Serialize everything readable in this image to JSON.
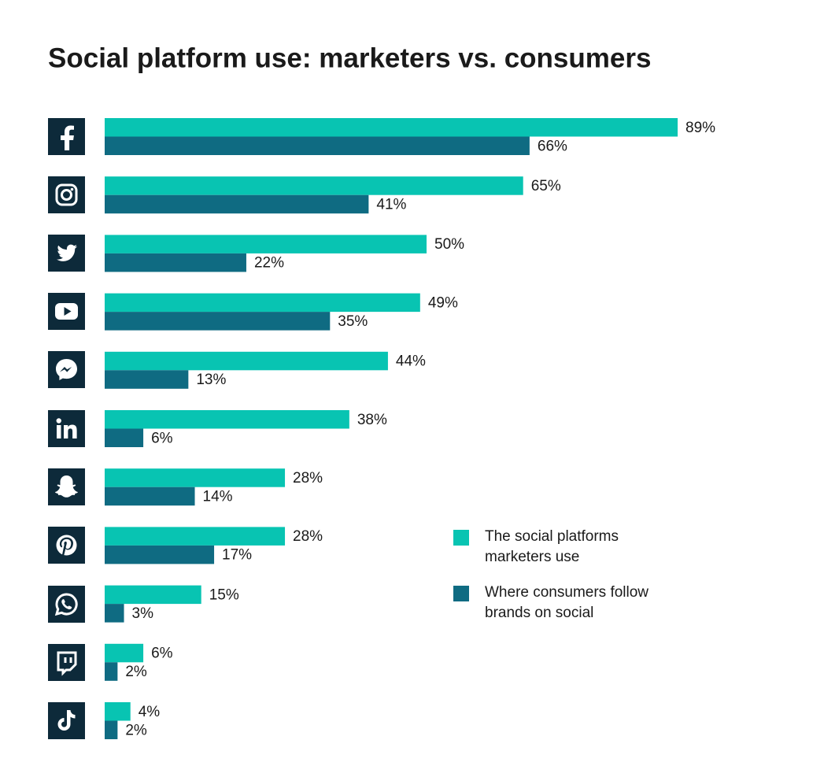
{
  "chart_data": {
    "type": "bar",
    "orientation": "horizontal",
    "title": "Social platform use: marketers vs. consumers",
    "categories": [
      null,
      null,
      null,
      null,
      null,
      null,
      null,
      null,
      null,
      null,
      null
    ],
    "series": [
      {
        "name": "The social platforms marketers use",
        "color": "#08c4b2",
        "values": [
          89,
          65,
          50,
          49,
          44,
          38,
          28,
          28,
          15,
          6,
          4
        ],
        "value_labels": [
          "89%",
          "65%",
          "50%",
          "49%",
          "44%",
          "38%",
          "28%",
          "28%",
          "15%",
          "6%",
          "4%"
        ]
      },
      {
        "name": "Where consumers follow brands on social",
        "color": "#0f6b82",
        "values": [
          66,
          41,
          22,
          35,
          13,
          6,
          14,
          17,
          3,
          2,
          2
        ],
        "value_labels": [
          "66%",
          "41%",
          "22%",
          "35%",
          "13%",
          "6%",
          "14%",
          "17%",
          "3%",
          "2%",
          "2%"
        ]
      }
    ]
  }
}
